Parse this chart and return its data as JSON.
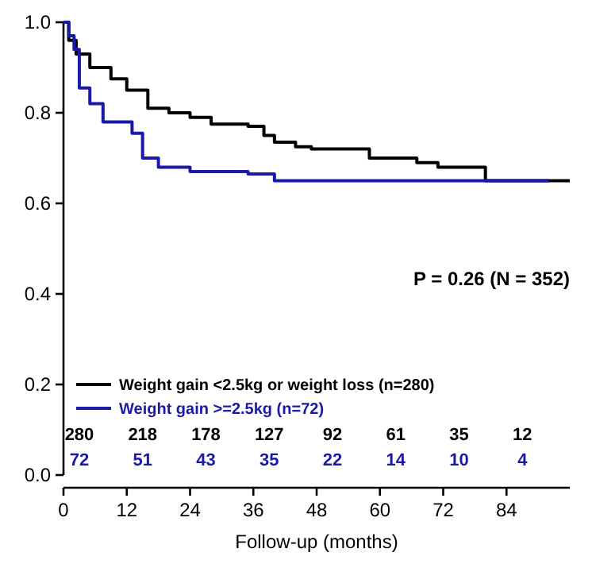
{
  "chart_data": {
    "type": "step",
    "xlabel": "Follow-up (months)",
    "xlim": [
      0,
      96
    ],
    "xticks": [
      0,
      12,
      24,
      36,
      48,
      60,
      72,
      84
    ],
    "ylim": [
      0,
      1
    ],
    "yticks": [
      {
        "value": 0,
        "label": "0.0"
      },
      {
        "value": 0.2,
        "label": "0.2"
      },
      {
        "value": 0.4,
        "label": "0.4"
      },
      {
        "value": 0.6,
        "label": "0.6"
      },
      {
        "value": 0.8,
        "label": "0.8"
      },
      {
        "value": 1,
        "label": "1.0"
      }
    ],
    "legend": "bottom left",
    "grid": false,
    "series": [
      {
        "name": "Weight gain <2.5kg or weight loss (n=280)",
        "color": "#000000",
        "x": [
          0,
          1,
          2.4,
          5,
          9,
          12,
          16,
          20,
          24,
          28,
          35,
          38,
          40,
          44,
          47,
          58,
          67,
          71,
          80,
          96
        ],
        "values": [
          1,
          0.96,
          0.93,
          0.9,
          0.875,
          0.85,
          0.81,
          0.8,
          0.79,
          0.775,
          0.77,
          0.75,
          0.735,
          0.725,
          0.72,
          0.7,
          0.69,
          0.68,
          0.65,
          0.65
        ]
      },
      {
        "name": "Weight gain >=2.5kg (n=72)",
        "color": "#1a1aa8",
        "x": [
          0,
          1,
          2,
          3,
          5,
          7.5,
          13,
          15,
          18,
          24,
          35,
          40,
          92
        ],
        "values": [
          1,
          0.97,
          0.94,
          0.855,
          0.82,
          0.78,
          0.755,
          0.7,
          0.68,
          0.67,
          0.665,
          0.65,
          0.65
        ]
      }
    ],
    "annotations": [
      "P = 0.26 (N = 352)",
      "280",
      "218",
      "178",
      "127",
      "92",
      "61",
      "35",
      "12",
      "72",
      "51",
      "43",
      "35",
      "22",
      "14",
      "10",
      "4"
    ]
  }
}
